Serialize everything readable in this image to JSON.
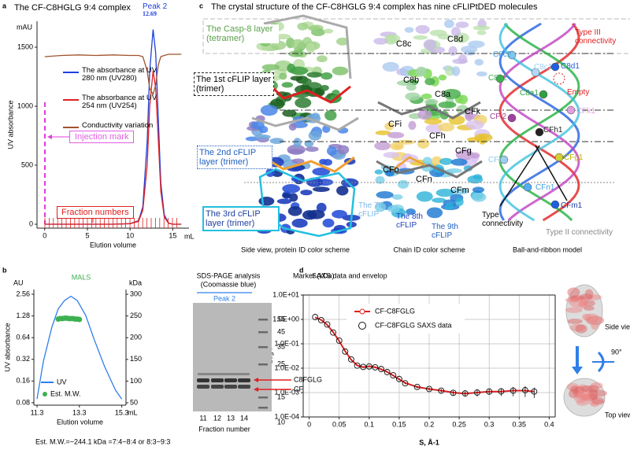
{
  "panel_labels": [
    "a",
    "b",
    "c",
    "d"
  ],
  "chart_data": [
    {
      "type": "line",
      "title": "The CF-C8HGLG 9:4 complex",
      "ylabel": "UV absorbance",
      "xlabel": "Elution volume",
      "y_unit": "mAU",
      "x_unit": "mL",
      "x": [
        0,
        2,
        4,
        6,
        8,
        10,
        11,
        11.5,
        12,
        12.3,
        12.69,
        13,
        13.3,
        13.6,
        14,
        14.5,
        15,
        16
      ],
      "series": [
        {
          "name": "The absorbance at UV 280 nm (UV280)",
          "color": "#1f3fe0",
          "values": [
            0,
            0,
            0,
            0,
            0,
            5,
            30,
            150,
            700,
            1300,
            1650,
            1450,
            900,
            350,
            80,
            10,
            0,
            0
          ]
        },
        {
          "name": "The absorbance at UV 254 nm (UV254)",
          "color": "#e02020",
          "values": [
            0,
            0,
            0,
            0,
            0,
            5,
            25,
            120,
            500,
            1000,
            1300,
            1150,
            720,
            280,
            60,
            8,
            0,
            0
          ]
        },
        {
          "name": "Conductivity variation",
          "color": "#a0522d",
          "values": [
            1420,
            1430,
            1435,
            1430,
            1435,
            1430,
            1430,
            1420,
            1300,
            1150,
            1100,
            1180,
            1350,
            1420,
            1430,
            1440,
            1440,
            1440
          ]
        }
      ],
      "xlim": [
        -0.9,
        16.9
      ],
      "ylim": [
        -33,
        1720
      ],
      "xticks": [
        0,
        5,
        10,
        15
      ],
      "yticks": [
        0,
        500,
        1000,
        1500
      ],
      "annotations": [
        "Peak 2",
        "12.69",
        "Injection mark",
        "Fraction numbers"
      ]
    },
    {
      "type": "line",
      "title": "MALS",
      "ylabel": "UV absorbance",
      "xlabel": "Elution volume",
      "y_unit": "AU",
      "y2_unit": "kDa",
      "x_unit": "mL",
      "ylog": true,
      "series": [
        {
          "name": "UV",
          "color": "#2f7fe8",
          "x": [
            11.3,
            11.6,
            12,
            12.3,
            12.6,
            12.9,
            13.2,
            13.6,
            14,
            14.5,
            15,
            15.3
          ],
          "values": [
            0.09,
            0.3,
            0.9,
            1.6,
            2.1,
            2.4,
            2.1,
            1.3,
            0.6,
            0.25,
            0.12,
            0.09
          ]
        },
        {
          "name": "Est. M.W.",
          "type": "scatter",
          "axis": "y2",
          "color": "#3cb050",
          "x": [
            12.3,
            12.4,
            12.5,
            12.6,
            12.7,
            12.8,
            12.9,
            13.0,
            13.1,
            13.2,
            13.3
          ],
          "values": [
            243,
            244,
            244,
            245,
            245,
            244,
            244,
            244,
            243,
            243,
            242
          ]
        }
      ],
      "xlim": [
        11.15,
        15.5
      ],
      "ylim": [
        0.074,
        2.98
      ],
      "y2lim": [
        44.6,
        311
      ],
      "xticks": [
        11.3,
        13.3,
        15.3
      ],
      "yticks": [
        2.56,
        1.28,
        0.64,
        0.32,
        0.16,
        0.08
      ],
      "y2ticks": [
        300,
        250,
        200,
        150,
        100,
        50
      ],
      "footnote": "Est. M.W.=~244.1 kDa =7:4~8:4 or 8:3~9:3"
    },
    {
      "type": "line",
      "title": "SAXS data and envelop",
      "ylabel": "Log I",
      "xlabel": "S, Å-1",
      "ylog": true,
      "grid": true,
      "x": [
        0.01,
        0.02,
        0.03,
        0.04,
        0.05,
        0.06,
        0.07,
        0.08,
        0.09,
        0.1,
        0.11,
        0.12,
        0.13,
        0.14,
        0.15,
        0.16,
        0.18,
        0.2,
        0.22,
        0.24,
        0.26,
        0.28,
        0.3,
        0.32,
        0.34,
        0.36,
        0.375
      ],
      "series": [
        {
          "name": "CF-C8FGLG",
          "color": "#e02020",
          "values": [
            1.2,
            0.95,
            0.6,
            0.3,
            0.13,
            0.05,
            0.022,
            0.013,
            0.011,
            0.012,
            0.011,
            0.009,
            0.007,
            0.005,
            0.0035,
            0.0025,
            0.0017,
            0.0014,
            0.0012,
            0.001,
            0.0009,
            0.001,
            0.0011,
            0.0011,
            0.0012,
            0.0012,
            0.0011
          ]
        },
        {
          "name": "CF-C8FGLG SAXS data",
          "type": "scatter",
          "color": "#111111",
          "fill": "none",
          "values": [
            1.25,
            0.93,
            0.62,
            0.29,
            0.135,
            0.048,
            0.023,
            0.0128,
            0.0112,
            0.0118,
            0.0108,
            0.0092,
            0.0069,
            0.0051,
            0.0036,
            0.0024,
            0.0017,
            0.0014,
            0.0012,
            0.00098,
            0.00092,
            0.001,
            0.0011,
            0.00112,
            0.0012,
            0.00125,
            0.0011
          ],
          "errors": [
            0.02,
            0.01,
            0.01,
            0.005,
            0.003,
            0.001,
            0.0005,
            0.0003,
            0.0003,
            0.0003,
            0.0003,
            0.0002,
            0.0002,
            0.0002,
            0.0002,
            0.0002,
            0.0002,
            0.0002,
            0.0002,
            0.0002,
            0.0002,
            0.0003,
            0.0003,
            0.0004,
            0.0005,
            0.0006,
            0.0005
          ]
        }
      ],
      "xlim": [
        -0.01,
        0.41
      ],
      "ylim": [
        0.0001,
        10
      ],
      "xticks": [
        0,
        0.05,
        0.1,
        0.15,
        0.2,
        0.25,
        0.3,
        0.35,
        0.4
      ],
      "yticks": [
        {
          "value": 10,
          "label": "1.0E+01"
        },
        {
          "value": 1,
          "label": "1.0E+00"
        },
        {
          "value": 0.1,
          "label": "1.0E-01"
        },
        {
          "value": 0.01,
          "label": "1.0E-02"
        },
        {
          "value": 0.001,
          "label": "1.0E-03"
        },
        {
          "value": 0.0001,
          "label": "1.0E-04"
        }
      ]
    }
  ],
  "panel_b_gel": {
    "title": "SDS-PAGE analysis",
    "subtitle": "(Coomassie blue)",
    "peak": "Peak 2",
    "marker": "Marker (kDa)",
    "marker_values": [
      55,
      45,
      35,
      25,
      15,
      10
    ],
    "band_labels": [
      "C8FGLG",
      "CF"
    ],
    "lanes": [
      11,
      12,
      13,
      14
    ],
    "x_label": "Fraction number"
  },
  "panel_c": {
    "title": "The crystal structure of the CF-C8HGLG 9:4 complex has nine cFLIPtDED molecules",
    "layers": [
      "The Casp-8 layer (tetramer)",
      "The 1st cFLIP layer (trimer)",
      "The 2nd cFLIP layer (trimer)",
      "The 3rd cFLIP layer (trimer)"
    ],
    "chain_labels": [
      "C8c",
      "C8d",
      "C8b",
      "C8a",
      "CFk",
      "CFi",
      "CFh",
      "CFg",
      "CFo",
      "CFn",
      "CFm"
    ],
    "cflip_labels": [
      "The 7th cFLIP",
      "The 8th cFLIP",
      "The 9th cFLIP"
    ],
    "ball_labels": [
      "C8c2",
      "C8d1",
      "C8c1",
      "C8b2",
      "C8a1",
      "CFk1",
      "CFi2",
      "CFh1",
      "CFo1",
      "CFg1",
      "CFn1",
      "CFm1"
    ],
    "annotations": [
      "Type III connectivity",
      "Empty",
      "Type connectivity",
      "Type II connectivity"
    ],
    "captions": [
      "Side view, protein ID color scheme",
      "Chain ID color scheme",
      "Ball-and-ribbon model"
    ]
  },
  "panel_d_views": [
    "Side view",
    "90°",
    "Top view"
  ]
}
